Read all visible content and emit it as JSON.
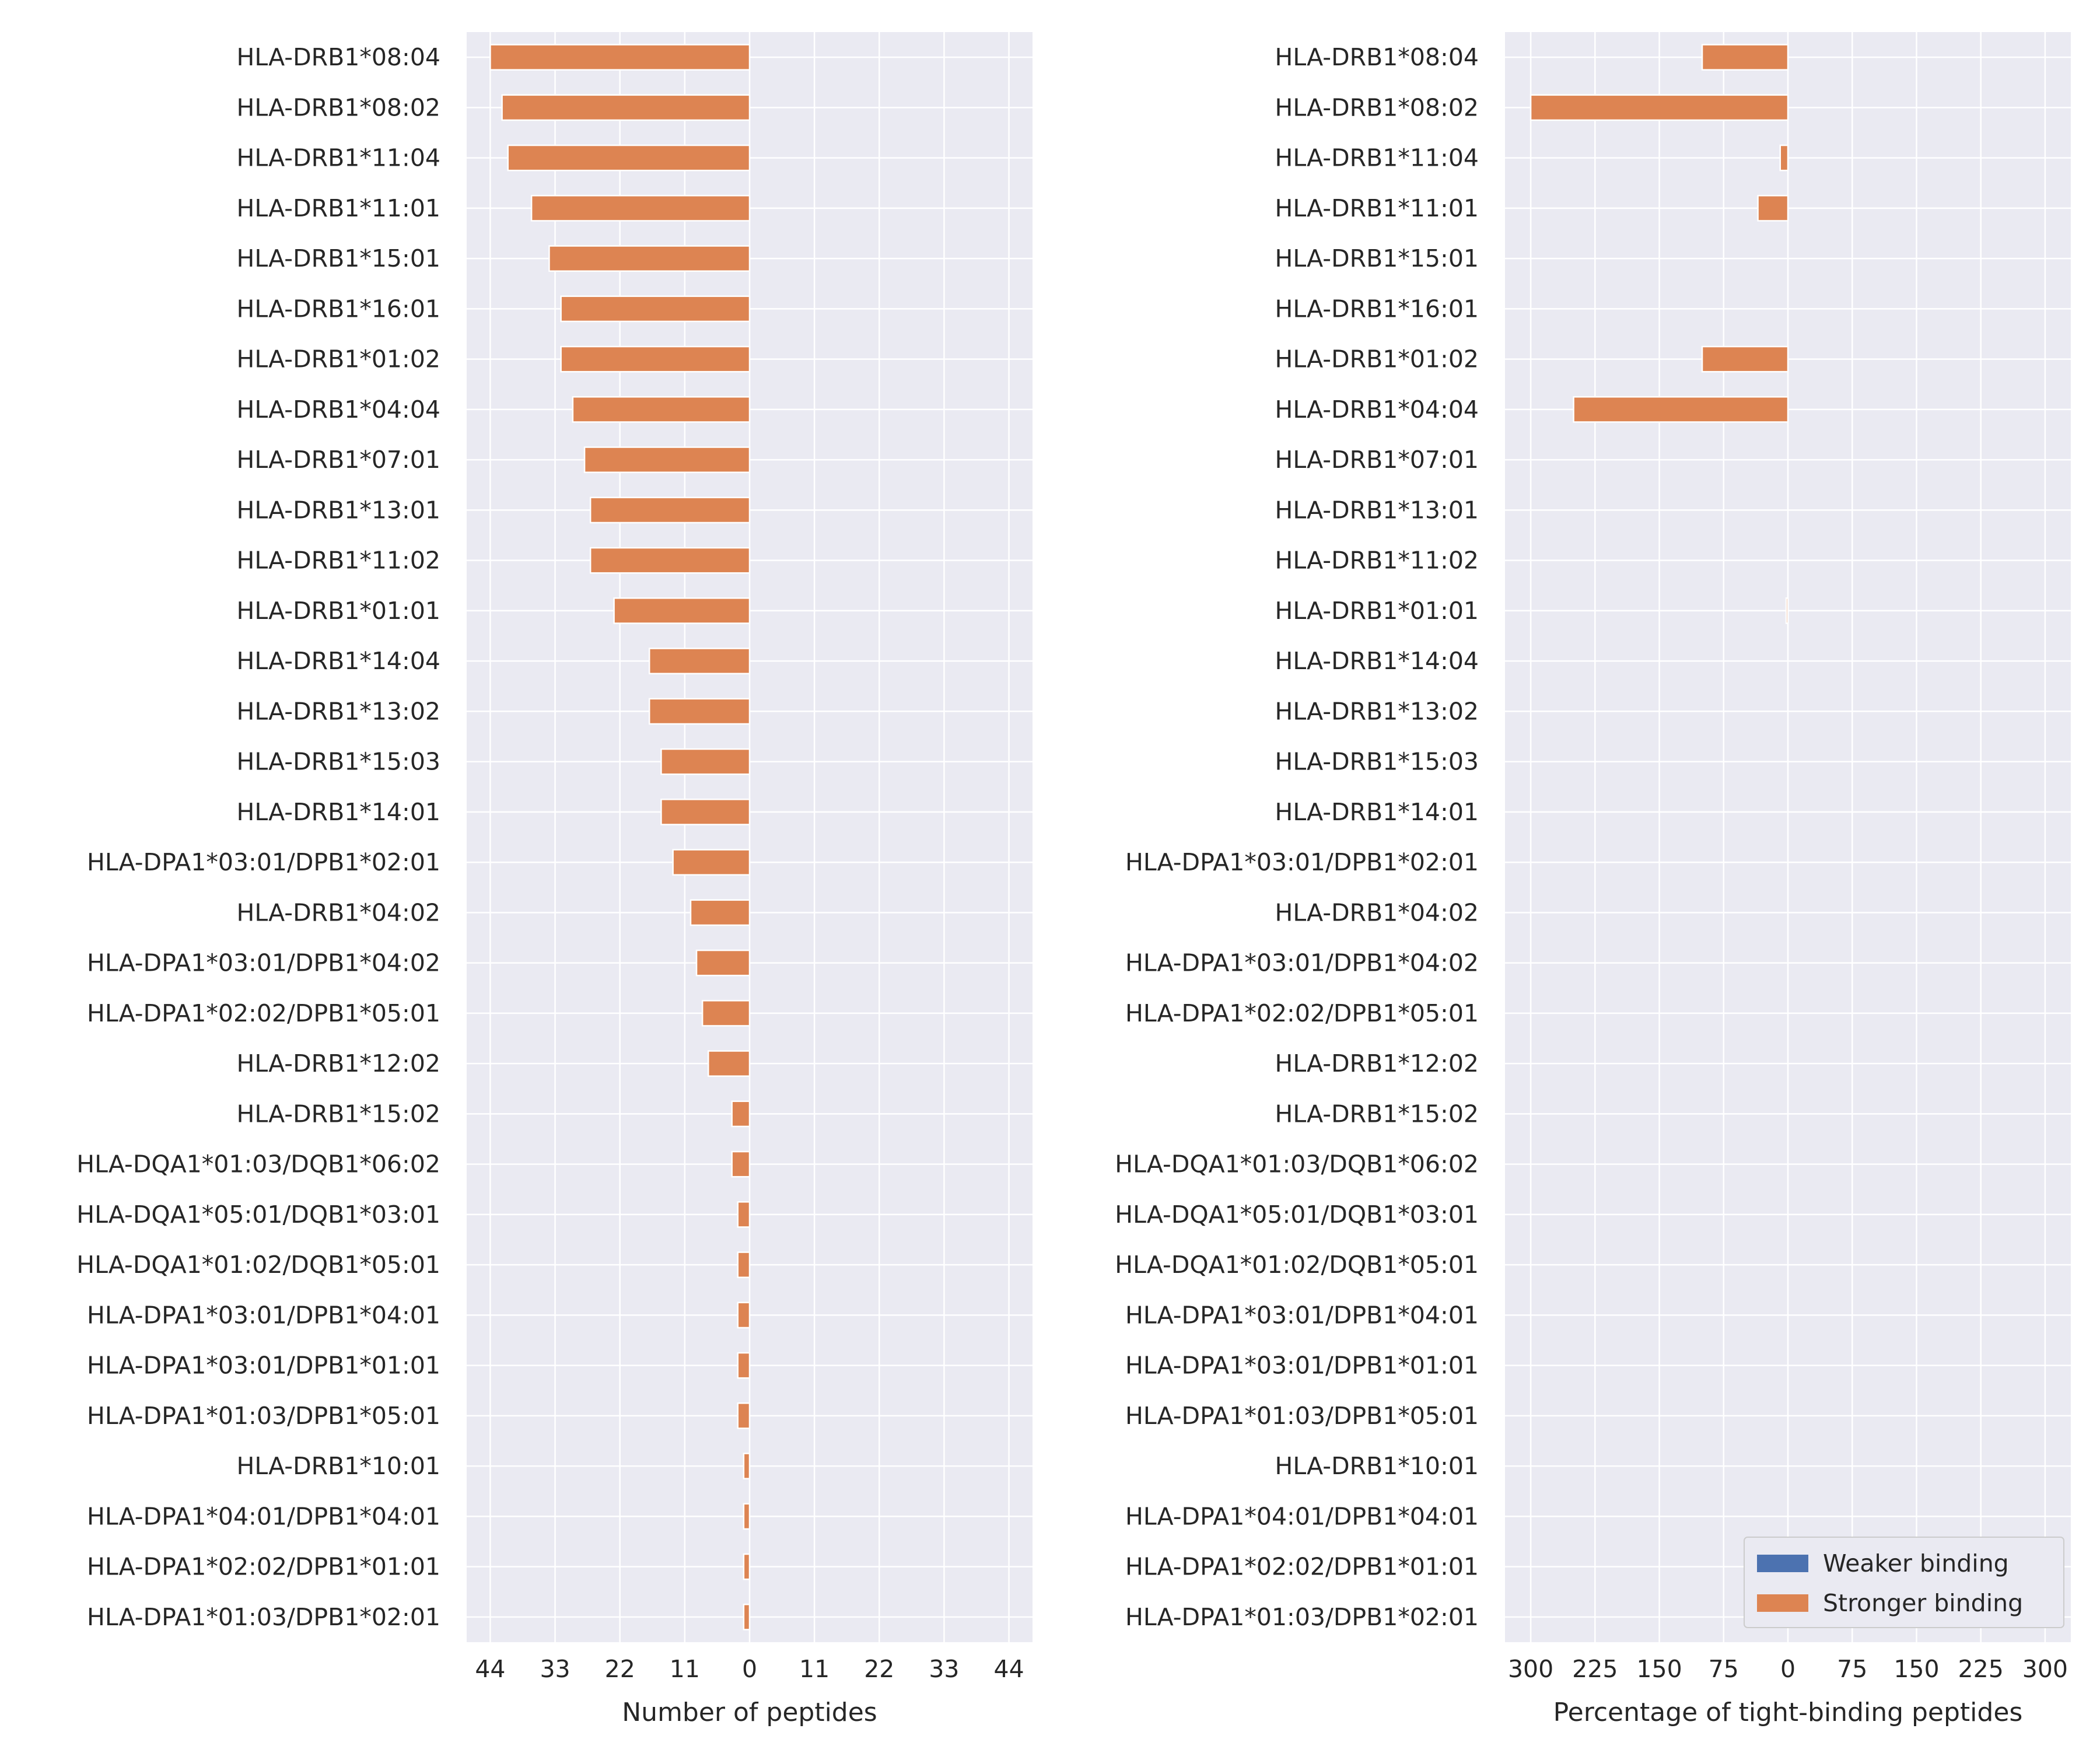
{
  "colors": {
    "background": "#EAEAF2",
    "grid": "#FFFFFF",
    "weaker": "#4C72B0",
    "stronger": "#DD8452",
    "text": "#262626"
  },
  "chart_data": [
    {
      "type": "bar",
      "orientation": "horizontal",
      "xlabel": "Number of peptides",
      "xlim": [
        -48,
        48
      ],
      "xticks": [
        -44,
        -33,
        -22,
        -11,
        0,
        11,
        22,
        33,
        44
      ],
      "xtick_labels": [
        "44",
        "33",
        "22",
        "11",
        "0",
        "11",
        "22",
        "33",
        "44"
      ],
      "grid": true,
      "categories": [
        "HLA-DRB1*08:04",
        "HLA-DRB1*08:02",
        "HLA-DRB1*11:04",
        "HLA-DRB1*11:01",
        "HLA-DRB1*15:01",
        "HLA-DRB1*16:01",
        "HLA-DRB1*01:02",
        "HLA-DRB1*04:04",
        "HLA-DRB1*07:01",
        "HLA-DRB1*13:01",
        "HLA-DRB1*11:02",
        "HLA-DRB1*01:01",
        "HLA-DRB1*14:04",
        "HLA-DRB1*13:02",
        "HLA-DRB1*15:03",
        "HLA-DRB1*14:01",
        "HLA-DPA1*03:01/DPB1*02:01",
        "HLA-DRB1*04:02",
        "HLA-DPA1*03:01/DPB1*04:02",
        "HLA-DPA1*02:02/DPB1*05:01",
        "HLA-DRB1*12:02",
        "HLA-DRB1*15:02",
        "HLA-DQA1*01:03/DQB1*06:02",
        "HLA-DQA1*05:01/DQB1*03:01",
        "HLA-DQA1*01:02/DQB1*05:01",
        "HLA-DPA1*03:01/DPB1*04:01",
        "HLA-DPA1*03:01/DPB1*01:01",
        "HLA-DPA1*01:03/DPB1*05:01",
        "HLA-DRB1*10:01",
        "HLA-DPA1*04:01/DPB1*04:01",
        "HLA-DPA1*02:02/DPB1*01:01",
        "HLA-DPA1*01:03/DPB1*02:01"
      ],
      "series": [
        {
          "name": "Weaker binding",
          "values": [
            0,
            0,
            0,
            0,
            0,
            0,
            0,
            0,
            0,
            0,
            0,
            0,
            0,
            0,
            0,
            0,
            0,
            0,
            0,
            0,
            0,
            0,
            0,
            0,
            0,
            0,
            0,
            0,
            0,
            0,
            0,
            0
          ]
        },
        {
          "name": "Stronger binding",
          "values": [
            -44,
            -42,
            -41,
            -37,
            -34,
            -32,
            -32,
            -30,
            -28,
            -27,
            -27,
            -23,
            -17,
            -17,
            -15,
            -15,
            -13,
            -10,
            -9,
            -8,
            -7,
            -3,
            -3,
            -2,
            -2,
            -2,
            -2,
            -2,
            -1,
            -1,
            -1,
            -1
          ]
        }
      ]
    },
    {
      "type": "bar",
      "orientation": "horizontal",
      "xlabel": "Percentage of tight-binding peptides",
      "xlim": [
        -330,
        330
      ],
      "xticks": [
        -300,
        -225,
        -150,
        -75,
        0,
        75,
        150,
        225,
        300
      ],
      "xtick_labels": [
        "300",
        "225",
        "150",
        "75",
        "0",
        "75",
        "150",
        "225",
        "300"
      ],
      "grid": true,
      "legend_position": "bottom-right",
      "categories": [
        "HLA-DRB1*08:04",
        "HLA-DRB1*08:02",
        "HLA-DRB1*11:04",
        "HLA-DRB1*11:01",
        "HLA-DRB1*15:01",
        "HLA-DRB1*16:01",
        "HLA-DRB1*01:02",
        "HLA-DRB1*04:04",
        "HLA-DRB1*07:01",
        "HLA-DRB1*13:01",
        "HLA-DRB1*11:02",
        "HLA-DRB1*01:01",
        "HLA-DRB1*14:04",
        "HLA-DRB1*13:02",
        "HLA-DRB1*15:03",
        "HLA-DRB1*14:01",
        "HLA-DPA1*03:01/DPB1*02:01",
        "HLA-DRB1*04:02",
        "HLA-DPA1*03:01/DPB1*04:02",
        "HLA-DPA1*02:02/DPB1*05:01",
        "HLA-DRB1*12:02",
        "HLA-DRB1*15:02",
        "HLA-DQA1*01:03/DQB1*06:02",
        "HLA-DQA1*05:01/DQB1*03:01",
        "HLA-DQA1*01:02/DQB1*05:01",
        "HLA-DPA1*03:01/DPB1*04:01",
        "HLA-DPA1*03:01/DPB1*01:01",
        "HLA-DPA1*01:03/DPB1*05:01",
        "HLA-DRB1*10:01",
        "HLA-DPA1*04:01/DPB1*04:01",
        "HLA-DPA1*02:02/DPB1*01:01",
        "HLA-DPA1*01:03/DPB1*02:01"
      ],
      "series": [
        {
          "name": "Weaker binding",
          "values": [
            0,
            0,
            0,
            0,
            0,
            0,
            0,
            0,
            0,
            0,
            0,
            0,
            0,
            0,
            0,
            0,
            0,
            0,
            0,
            0,
            0,
            0,
            0,
            0,
            0,
            0,
            0,
            0,
            0,
            0,
            0,
            0
          ]
        },
        {
          "name": "Stronger binding",
          "values": [
            -100,
            -300,
            -9,
            -35,
            0,
            0,
            -100,
            -250,
            0,
            0,
            0,
            -2,
            0,
            0,
            0,
            0,
            0,
            0,
            0,
            0,
            0,
            0,
            0,
            0,
            0,
            0,
            0,
            0,
            0,
            0,
            0,
            0
          ]
        }
      ]
    }
  ]
}
